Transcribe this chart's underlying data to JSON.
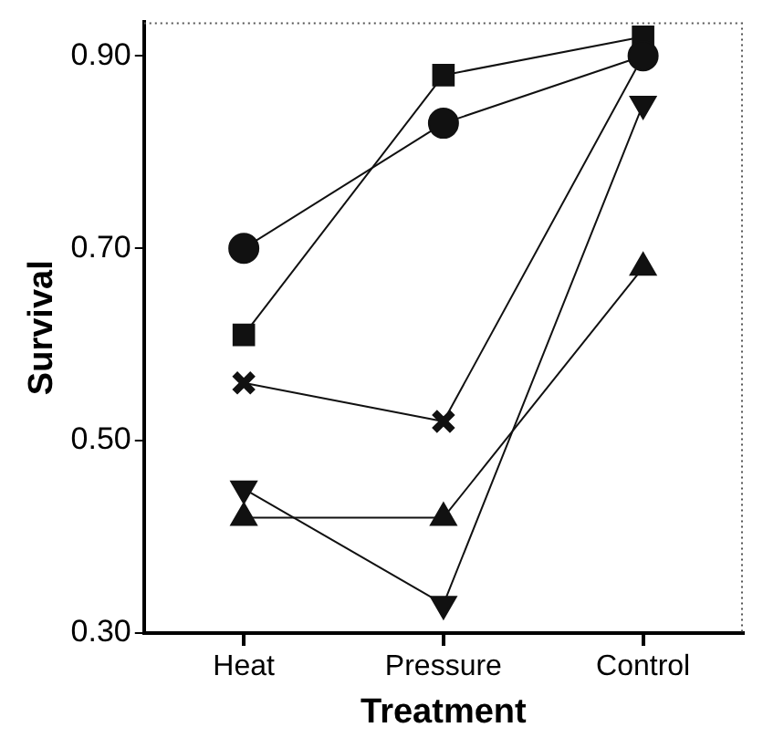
{
  "chart_data": {
    "type": "line",
    "xlabel": "Treatment",
    "ylabel": "Survival",
    "categories": [
      "Heat",
      "Pressure",
      "Control"
    ],
    "series": [
      {
        "color": "#111111",
        "marker": "circle",
        "values": [
          0.7,
          0.83,
          0.9
        ]
      },
      {
        "color": "#111111",
        "marker": "square",
        "values": [
          0.61,
          0.88,
          0.92
        ]
      },
      {
        "color": "#111111",
        "marker": "cross",
        "values": [
          0.56,
          0.52,
          0.9
        ]
      },
      {
        "color": "#111111",
        "marker": "triangle-down",
        "values": [
          0.45,
          0.33,
          0.85
        ]
      },
      {
        "color": "#111111",
        "marker": "triangle",
        "values": [
          0.42,
          0.42,
          0.68
        ]
      }
    ],
    "ylim": [
      0.3,
      0.935
    ],
    "yticks": [
      {
        "value": 0.3,
        "label": "0.30"
      },
      {
        "value": 0.5,
        "label": "0.50"
      },
      {
        "value": 0.7,
        "label": "0.70"
      },
      {
        "value": 0.9,
        "label": "0.90"
      }
    ],
    "grid": false,
    "legend": false,
    "line_style": "solid"
  }
}
